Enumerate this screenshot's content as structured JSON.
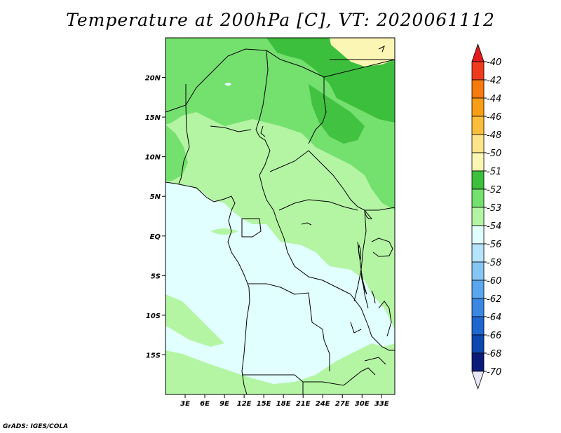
{
  "title": "Temperature at 200hPa [C], VT: 2020061112",
  "credit": "GrADS: IGES/COLA",
  "map": {
    "lat_range": [
      -20,
      25
    ],
    "lon_range": [
      0,
      35
    ],
    "lat_ticks": [
      {
        "value": 20,
        "label": "20N"
      },
      {
        "value": 15,
        "label": "15N"
      },
      {
        "value": 10,
        "label": "10N"
      },
      {
        "value": 5,
        "label": "5N"
      },
      {
        "value": 0,
        "label": "EQ"
      },
      {
        "value": -5,
        "label": "5S"
      },
      {
        "value": -10,
        "label": "10S"
      },
      {
        "value": -15,
        "label": "15S"
      }
    ],
    "lon_ticks": [
      {
        "value": 3,
        "label": "3E"
      },
      {
        "value": 6,
        "label": "6E"
      },
      {
        "value": 9,
        "label": "9E"
      },
      {
        "value": 12,
        "label": "12E"
      },
      {
        "value": 15,
        "label": "15E"
      },
      {
        "value": 18,
        "label": "18E"
      },
      {
        "value": 21,
        "label": "21E"
      },
      {
        "value": 24,
        "label": "24E"
      },
      {
        "value": 27,
        "label": "27E"
      },
      {
        "value": 30,
        "label": "30E"
      },
      {
        "value": 33,
        "label": "33E"
      }
    ]
  },
  "colorbar": {
    "levels": [
      {
        "label": "-40",
        "color": "#e31a1c"
      },
      {
        "label": "-42",
        "color": "#ef3b1c"
      },
      {
        "label": "-44",
        "color": "#f77a0e"
      },
      {
        "label": "-46",
        "color": "#f99d14"
      },
      {
        "label": "-48",
        "color": "#fbbe3a"
      },
      {
        "label": "-50",
        "color": "#fde38a"
      },
      {
        "label": "-51",
        "color": "#fbf6b4"
      },
      {
        "label": "-52",
        "color": "#3cbf3c"
      },
      {
        "label": "-53",
        "color": "#74e06e"
      },
      {
        "label": "-54",
        "color": "#b4f5a4"
      },
      {
        "label": "-56",
        "color": "#e2ffff"
      },
      {
        "label": "-58",
        "color": "#b5e4fb"
      },
      {
        "label": "-60",
        "color": "#86c6f5"
      },
      {
        "label": "-62",
        "color": "#5aa6ee"
      },
      {
        "label": "-64",
        "color": "#3a88e2"
      },
      {
        "label": "-66",
        "color": "#1e66d0"
      },
      {
        "label": "-68",
        "color": "#0b48b0"
      },
      {
        "label": "-70",
        "color": "#0a1a7a"
      }
    ],
    "under_color": "#e6e6f5"
  }
}
